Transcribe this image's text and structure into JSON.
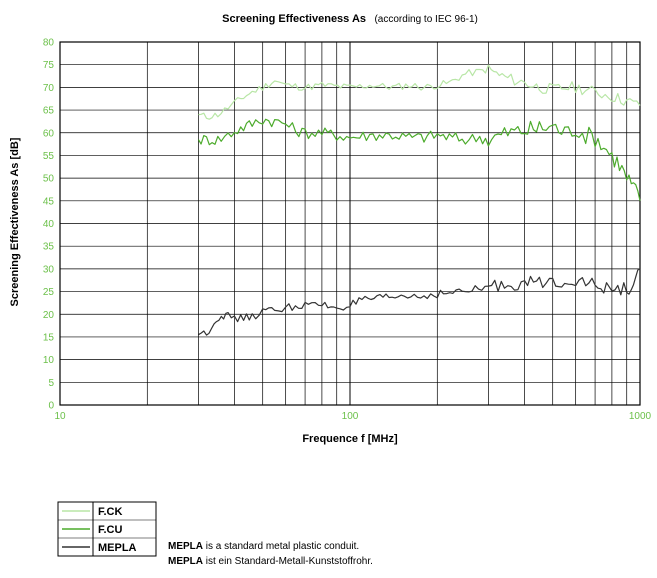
{
  "chart_data": {
    "type": "line",
    "title": "Screening Effectiveness As",
    "subtitle": "(according to IEC 96-1)",
    "xlabel": "Frequence f [MHz]",
    "ylabel": "Screening Effectiveness As [dB]",
    "xscale": "log",
    "xlim": [
      10,
      1000
    ],
    "ylim": [
      0,
      80
    ],
    "yticks": [
      0,
      5,
      10,
      15,
      20,
      25,
      30,
      35,
      40,
      45,
      50,
      55,
      60,
      65,
      70,
      75,
      80
    ],
    "xtick_labels": [
      "10",
      "100",
      "1000"
    ],
    "grid": true,
    "legend_position": "below-left",
    "series": [
      {
        "name": "F.CK",
        "color": "#b8e6a6",
        "points": [
          [
            30,
            64
          ],
          [
            32,
            63.5
          ],
          [
            35,
            64
          ],
          [
            38,
            65.5
          ],
          [
            42,
            67.5
          ],
          [
            46,
            69
          ],
          [
            50,
            70
          ],
          [
            55,
            71.5
          ],
          [
            60,
            70.5
          ],
          [
            70,
            70
          ],
          [
            80,
            70.5
          ],
          [
            100,
            70
          ],
          [
            120,
            70.5
          ],
          [
            140,
            70
          ],
          [
            160,
            70.5
          ],
          [
            180,
            70
          ],
          [
            200,
            70.5
          ],
          [
            220,
            71
          ],
          [
            250,
            73
          ],
          [
            280,
            73.5
          ],
          [
            300,
            74
          ],
          [
            320,
            73
          ],
          [
            350,
            72
          ],
          [
            400,
            71
          ],
          [
            450,
            70
          ],
          [
            500,
            69.5
          ],
          [
            550,
            70
          ],
          [
            600,
            70
          ],
          [
            700,
            69
          ],
          [
            800,
            68
          ],
          [
            900,
            67
          ],
          [
            1000,
            66
          ]
        ]
      },
      {
        "name": "F.CU",
        "color": "#4cab2c",
        "points": [
          [
            30,
            58.5
          ],
          [
            32,
            58.5
          ],
          [
            35,
            58.5
          ],
          [
            38,
            59.5
          ],
          [
            42,
            61
          ],
          [
            46,
            62
          ],
          [
            50,
            63
          ],
          [
            55,
            62.5
          ],
          [
            60,
            62
          ],
          [
            65,
            60.5
          ],
          [
            70,
            60
          ],
          [
            80,
            60
          ],
          [
            90,
            59.5
          ],
          [
            100,
            59
          ],
          [
            120,
            59.5
          ],
          [
            140,
            59.5
          ],
          [
            160,
            59
          ],
          [
            180,
            59
          ],
          [
            200,
            59.5
          ],
          [
            220,
            59
          ],
          [
            250,
            58.5
          ],
          [
            280,
            59
          ],
          [
            300,
            58.5
          ],
          [
            350,
            60
          ],
          [
            400,
            60.5
          ],
          [
            450,
            61
          ],
          [
            500,
            61.5
          ],
          [
            550,
            60
          ],
          [
            600,
            61
          ],
          [
            650,
            59.5
          ],
          [
            700,
            59
          ],
          [
            750,
            57
          ],
          [
            800,
            55
          ],
          [
            850,
            53
          ],
          [
            900,
            50
          ],
          [
            950,
            48
          ],
          [
            1000,
            45
          ]
        ]
      },
      {
        "name": "MEPLA",
        "color": "#333333",
        "points": [
          [
            30,
            15.5
          ],
          [
            32,
            16
          ],
          [
            34,
            18
          ],
          [
            36,
            20
          ],
          [
            38,
            19.5
          ],
          [
            42,
            19
          ],
          [
            46,
            19.5
          ],
          [
            50,
            20.5
          ],
          [
            55,
            21
          ],
          [
            60,
            21.5
          ],
          [
            70,
            22
          ],
          [
            80,
            22
          ],
          [
            90,
            21.5
          ],
          [
            100,
            22
          ],
          [
            110,
            23
          ],
          [
            130,
            23.5
          ],
          [
            150,
            24
          ],
          [
            180,
            24
          ],
          [
            200,
            24.5
          ],
          [
            250,
            25
          ],
          [
            300,
            26
          ],
          [
            350,
            26.5
          ],
          [
            400,
            27
          ],
          [
            450,
            27
          ],
          [
            500,
            27
          ],
          [
            550,
            27.5
          ],
          [
            600,
            27.5
          ],
          [
            650,
            27.5
          ],
          [
            700,
            26
          ],
          [
            750,
            25.5
          ],
          [
            800,
            26
          ],
          [
            900,
            25.5
          ],
          [
            950,
            26
          ],
          [
            1000,
            30
          ]
        ]
      }
    ]
  },
  "legend": {
    "items": [
      {
        "label": "F.CK",
        "color": "#b8e6a6"
      },
      {
        "label": "F.CU",
        "color": "#4cab2c"
      },
      {
        "label": "MEPLA",
        "color": "#333333"
      }
    ]
  },
  "note": {
    "line1_bold": "MEPLA",
    "line1_text": " is a standard metal plastic conduit.",
    "line2_bold": "MEPLA",
    "line2_text": " ist ein Standard-Metall-Kunststoffrohr."
  }
}
